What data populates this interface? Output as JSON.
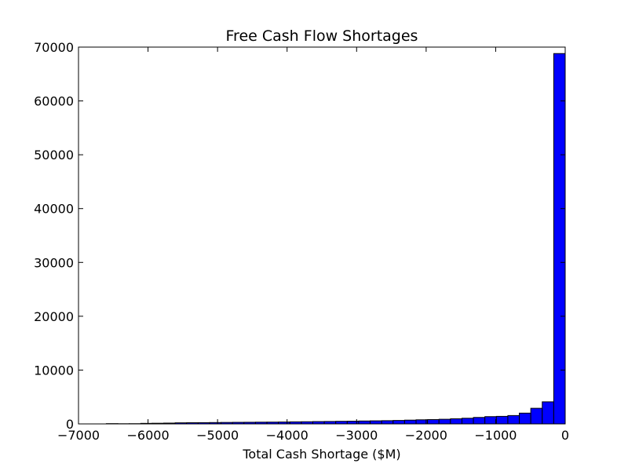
{
  "chart_data": {
    "type": "bar",
    "title": "Free Cash Flow Shortages",
    "xlabel": "Total Cash Shortage ($M)",
    "ylabel": "",
    "xlim": [
      -7000,
      0
    ],
    "ylim": [
      0,
      70000
    ],
    "xticks": [
      -7000,
      -6000,
      -5000,
      -4000,
      -3000,
      -2000,
      -1000,
      0
    ],
    "yticks": [
      0,
      10000,
      20000,
      30000,
      40000,
      50000,
      60000,
      70000
    ],
    "bar_color": "#0000ff",
    "edge_color": "#000000",
    "grid": false,
    "bin_width": 165,
    "bins": [
      {
        "x0": -6600,
        "value": 50
      },
      {
        "x0": -6435,
        "value": 30
      },
      {
        "x0": -6270,
        "value": 40
      },
      {
        "x0": -6105,
        "value": 100
      },
      {
        "x0": -5940,
        "value": 120
      },
      {
        "x0": -5775,
        "value": 150
      },
      {
        "x0": -5610,
        "value": 200
      },
      {
        "x0": -5445,
        "value": 220
      },
      {
        "x0": -5280,
        "value": 230
      },
      {
        "x0": -5115,
        "value": 250
      },
      {
        "x0": -4950,
        "value": 270
      },
      {
        "x0": -4785,
        "value": 290
      },
      {
        "x0": -4620,
        "value": 300
      },
      {
        "x0": -4455,
        "value": 320
      },
      {
        "x0": -4290,
        "value": 330
      },
      {
        "x0": -4125,
        "value": 350
      },
      {
        "x0": -3960,
        "value": 380
      },
      {
        "x0": -3795,
        "value": 400
      },
      {
        "x0": -3630,
        "value": 430
      },
      {
        "x0": -3465,
        "value": 450
      },
      {
        "x0": -3300,
        "value": 480
      },
      {
        "x0": -3135,
        "value": 500
      },
      {
        "x0": -2970,
        "value": 540
      },
      {
        "x0": -2805,
        "value": 570
      },
      {
        "x0": -2640,
        "value": 600
      },
      {
        "x0": -2475,
        "value": 640
      },
      {
        "x0": -2310,
        "value": 700
      },
      {
        "x0": -2145,
        "value": 760
      },
      {
        "x0": -1980,
        "value": 800
      },
      {
        "x0": -1815,
        "value": 860
      },
      {
        "x0": -1650,
        "value": 950
      },
      {
        "x0": -1485,
        "value": 1050
      },
      {
        "x0": -1320,
        "value": 1200
      },
      {
        "x0": -1155,
        "value": 1350
      },
      {
        "x0": -990,
        "value": 1400
      },
      {
        "x0": -825,
        "value": 1550
      },
      {
        "x0": -660,
        "value": 2000
      },
      {
        "x0": -495,
        "value": 2900
      },
      {
        "x0": -330,
        "value": 4100
      },
      {
        "x0": -165,
        "value": 68800
      }
    ]
  }
}
